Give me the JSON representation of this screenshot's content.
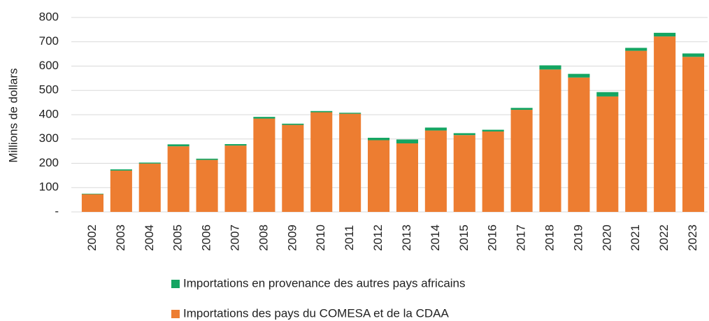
{
  "chart_data": {
    "type": "stacked_bar",
    "y_label": "Millions de dollars",
    "categories": [
      "2002",
      "2003",
      "2004",
      "2005",
      "2006",
      "2007",
      "2008",
      "2009",
      "2010",
      "2011",
      "2012",
      "2013",
      "2014",
      "2015",
      "2016",
      "2017",
      "2018",
      "2019",
      "2020",
      "2021",
      "2022",
      "2023"
    ],
    "series": [
      {
        "name": "Importations des pays du COMESA et de la CDAA",
        "color": "#ed7d31",
        "values": [
          73,
          170,
          199,
          270,
          214,
          273,
          384,
          358,
          410,
          404,
          295,
          282,
          335,
          316,
          331,
          420,
          586,
          553,
          475,
          663,
          722,
          638
        ]
      },
      {
        "name": "Importations en provenance des autres pays africains",
        "color": "#14a562",
        "values": [
          2,
          5,
          4,
          8,
          5,
          6,
          7,
          5,
          5,
          4,
          10,
          16,
          12,
          8,
          7,
          8,
          17,
          15,
          18,
          12,
          15,
          14
        ]
      }
    ],
    "ylim": [
      0,
      800
    ],
    "yticks": [
      {
        "value": 0,
        "label": "-"
      },
      100,
      200,
      300,
      400,
      500,
      600,
      700,
      800
    ],
    "grid": true
  }
}
